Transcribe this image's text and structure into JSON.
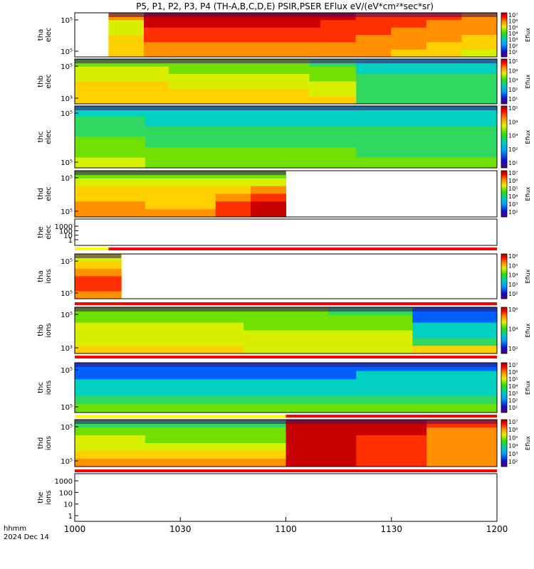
{
  "title": "P5, P1, P2, P3, P4 (TH-A,B,C,D,E) PSIR,PSER EFlux eV/(eV*cm²*sec*sr)",
  "xaxis": {
    "ticks": [
      "1000",
      "1030",
      "1100",
      "1130",
      "1200"
    ],
    "label_line1": "hhmm",
    "label_line2": "2024 Dec 14"
  },
  "cbar_label": "Eflux",
  "chart_data": [
    {
      "type": "heatmap",
      "panel": "tha-elec",
      "ylabel": [
        "tha",
        "elec"
      ],
      "y_ticks": [
        "10⁵",
        "10⁵"
      ],
      "cbar_ticks": [
        "10⁷",
        "10⁶",
        "10⁵",
        "10⁴",
        "10³",
        "10²",
        "10¹"
      ],
      "columns": [
        [
          3,
          5,
          5,
          4,
          4,
          4
        ],
        [
          1,
          1,
          2,
          2,
          3,
          3
        ],
        [
          1,
          1,
          2,
          2,
          3,
          3
        ],
        [
          1,
          1,
          2,
          2,
          3,
          3
        ],
        [
          1,
          1,
          2,
          2,
          3,
          3
        ],
        [
          1,
          1,
          2,
          2,
          3,
          3
        ],
        [
          1,
          2,
          2,
          2,
          3,
          3
        ],
        [
          2,
          2,
          2,
          3,
          3,
          3
        ],
        [
          2,
          2,
          3,
          3,
          3,
          4
        ],
        [
          2,
          3,
          3,
          3,
          4,
          4
        ],
        [
          3,
          3,
          3,
          4,
          4,
          5
        ]
      ],
      "data_start": 0.08
    },
    {
      "type": "heatmap",
      "panel": "thb-elec",
      "ylabel": [
        "thb",
        "elec"
      ],
      "y_ticks": [
        "10⁵",
        "10³"
      ],
      "cbar_ticks": [
        "10⁵",
        "10⁴",
        "10³",
        "10²",
        "10¹"
      ],
      "columns": [
        [
          6,
          5,
          5,
          4,
          4,
          4
        ],
        [
          6,
          5,
          5,
          4,
          4,
          4
        ],
        [
          6,
          6,
          5,
          5,
          4,
          4
        ],
        [
          6,
          6,
          5,
          5,
          4,
          4
        ],
        [
          6,
          6,
          5,
          5,
          4,
          4
        ],
        [
          7,
          6,
          6,
          5,
          5,
          4
        ],
        [
          8,
          8,
          7,
          7,
          7,
          7
        ],
        [
          8,
          8,
          7,
          7,
          7,
          7
        ],
        [
          8,
          8,
          7,
          7,
          7,
          7
        ]
      ],
      "split": 0.65
    },
    {
      "type": "heatmap",
      "panel": "thc-elec",
      "ylabel": [
        "thc",
        "elec"
      ],
      "y_ticks": [
        "10⁵",
        "10⁵"
      ],
      "cbar_ticks": [
        "10⁵",
        "10⁴",
        "10³",
        "10²",
        "10¹"
      ],
      "columns": [
        [
          8,
          7,
          7,
          6,
          6,
          5
        ],
        [
          8,
          8,
          7,
          7,
          6,
          6
        ],
        [
          8,
          8,
          7,
          7,
          6,
          6
        ],
        [
          8,
          8,
          7,
          7,
          6,
          6
        ],
        [
          8,
          8,
          7,
          7,
          7,
          6
        ],
        [
          8,
          8,
          7,
          7,
          7,
          6
        ]
      ]
    },
    {
      "type": "heatmap",
      "panel": "thd-elec",
      "ylabel": [
        "thd",
        "elec"
      ],
      "y_ticks": [
        "10⁵",
        "10⁵"
      ],
      "cbar_ticks": [
        "10⁷",
        "10⁶",
        "10⁵",
        "10⁴",
        "10³",
        "10²"
      ],
      "columns": [
        [
          6,
          5,
          4,
          4,
          3,
          3
        ],
        [
          6,
          5,
          4,
          4,
          3,
          3
        ],
        [
          6,
          5,
          4,
          4,
          4,
          3
        ],
        [
          6,
          5,
          4,
          4,
          4,
          3
        ],
        [
          6,
          5,
          4,
          3,
          2,
          2
        ],
        [
          6,
          5,
          3,
          2,
          1,
          1
        ]
      ],
      "data_end": 0.5
    },
    {
      "type": "line",
      "panel": "the-elec",
      "ylabel": [
        "the",
        "elec"
      ],
      "y_ticks": [
        "1000",
        "100",
        "10",
        "1"
      ],
      "values": []
    },
    {
      "type": "heatmap",
      "panel": "tha-ions",
      "ylabel": [
        "tha",
        "ions"
      ],
      "y_ticks": [
        "10⁵",
        "10⁵"
      ],
      "cbar_ticks": [
        "10⁶",
        "10⁵",
        "10⁴",
        "10³",
        "10²"
      ],
      "columns": [
        [
          5,
          4,
          3,
          2,
          2,
          3
        ]
      ],
      "data_end": 0.11
    },
    {
      "type": "heatmap",
      "panel": "thb-ions",
      "ylabel": [
        "thb",
        "ions"
      ],
      "y_ticks": [
        "10⁵",
        "10³"
      ],
      "cbar_ticks": [
        "10⁶",
        "10⁴",
        "10²"
      ],
      "columns": [
        [
          6,
          6,
          5,
          5,
          5,
          4
        ],
        [
          6,
          6,
          5,
          5,
          5,
          4
        ],
        [
          6,
          6,
          6,
          5,
          5,
          5
        ],
        [
          7,
          6,
          6,
          5,
          5,
          5
        ],
        [
          9,
          9,
          8,
          8,
          7,
          4
        ]
      ],
      "split": 0.65
    },
    {
      "type": "heatmap",
      "panel": "thc-ions",
      "ylabel": [
        "thc",
        "ions"
      ],
      "y_ticks": [
        "10⁵",
        "10⁵"
      ],
      "cbar_ticks": [
        "10⁷",
        "10⁶",
        "10⁵",
        "10⁴",
        "10³",
        "10²",
        "10¹"
      ],
      "columns": [
        [
          9,
          9,
          8,
          8,
          7,
          6
        ],
        [
          9,
          9,
          8,
          8,
          7,
          6
        ],
        [
          9,
          8,
          8,
          8,
          7,
          6
        ]
      ]
    },
    {
      "type": "heatmap",
      "panel": "thd-ions",
      "ylabel": [
        "thd",
        "ions"
      ],
      "y_ticks": [
        "10⁵",
        "10⁵"
      ],
      "cbar_ticks": [
        "10⁷",
        "10⁶",
        "10⁵",
        "10⁴",
        "10³",
        "10²"
      ],
      "columns": [
        [
          7,
          6,
          5,
          5,
          4,
          3
        ],
        [
          7,
          6,
          6,
          5,
          4,
          3
        ],
        [
          7,
          6,
          6,
          5,
          4,
          3
        ],
        [
          1,
          1,
          1,
          1,
          1,
          1
        ],
        [
          1,
          1,
          2,
          2,
          2,
          2
        ],
        [
          2,
          3,
          3,
          3,
          3,
          3
        ]
      ],
      "split": 0.5
    },
    {
      "type": "line",
      "panel": "the-ions",
      "ylabel": [
        "the",
        "ions"
      ],
      "y_ticks": [
        "1000",
        "100",
        "10",
        "1"
      ],
      "values": []
    }
  ]
}
